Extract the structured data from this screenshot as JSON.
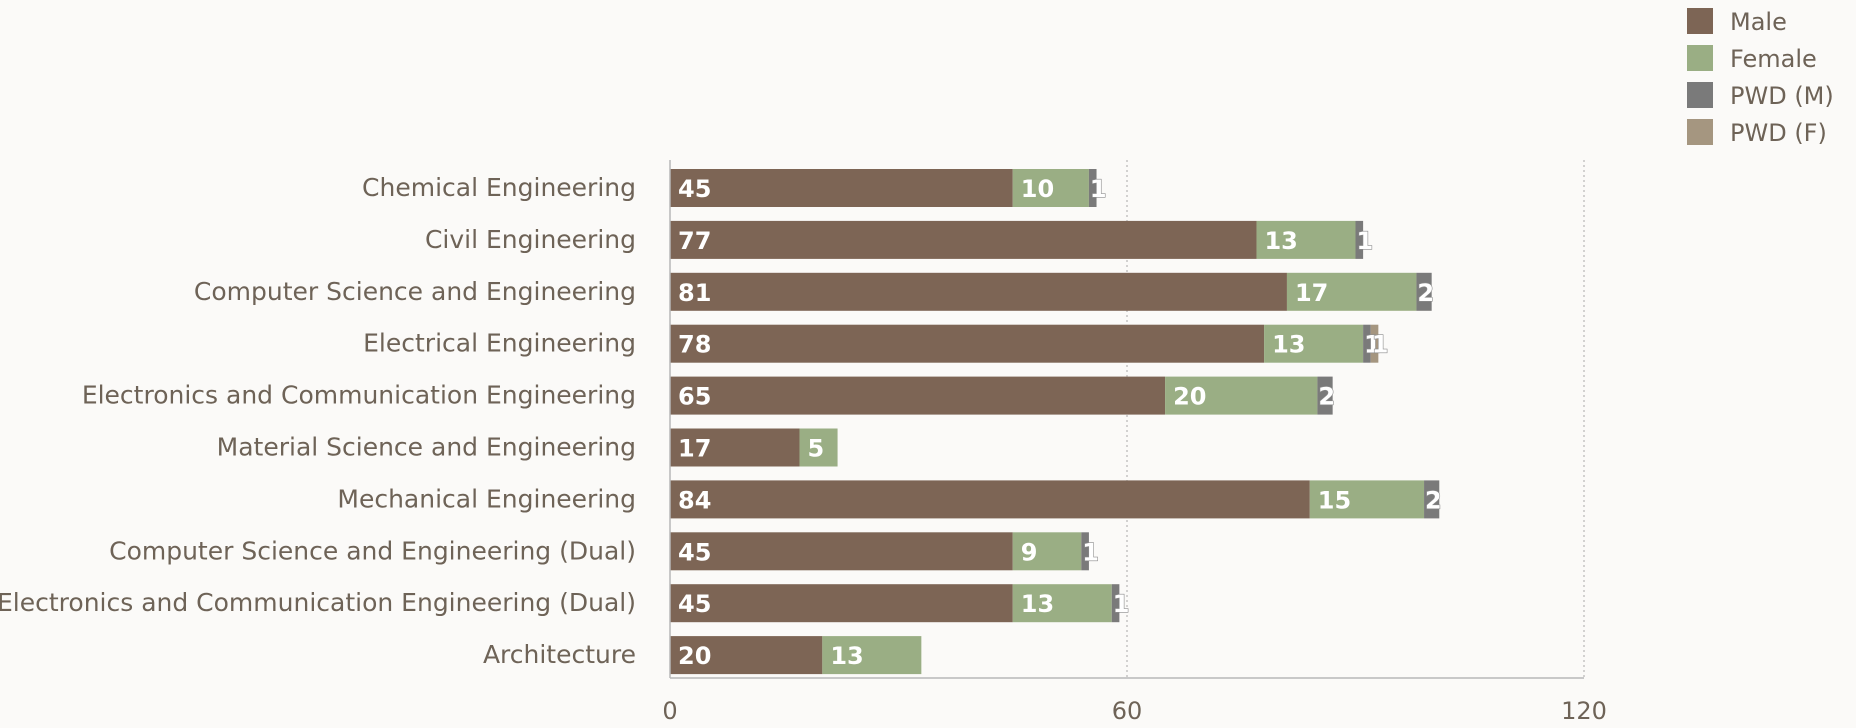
{
  "chart_data": {
    "type": "bar",
    "orientation": "horizontal",
    "stacked": true,
    "categories": [
      "Chemical Engineering",
      "Civil Engineering",
      "Computer Science and Engineering",
      "Electrical Engineering",
      "Electronics and Communication Engineering",
      "Material Science and Engineering",
      "Mechanical Engineering",
      "Computer Science and Engineering (Dual)",
      "Electronics and Communication Engineering (Dual)",
      "Architecture"
    ],
    "series": [
      {
        "name": "Male",
        "color": "#7d6555",
        "values": [
          45,
          77,
          81,
          78,
          65,
          17,
          84,
          45,
          45,
          20
        ]
      },
      {
        "name": "Female",
        "color": "#9aae84",
        "values": [
          10,
          13,
          17,
          13,
          20,
          5,
          15,
          9,
          13,
          13
        ]
      },
      {
        "name": "PWD (M)",
        "color": "#7a7a7a",
        "values": [
          1,
          1,
          2,
          1,
          2,
          0,
          2,
          1,
          1,
          0
        ]
      },
      {
        "name": "PWD (F)",
        "color": "#a59680",
        "values": [
          0,
          0,
          0,
          1,
          0,
          0,
          0,
          0,
          0,
          0
        ]
      }
    ],
    "xlim": [
      0,
      120
    ],
    "xticks": [
      0,
      60,
      120
    ],
    "grid": "vertical dotted",
    "legend": "top-right",
    "title": "",
    "xlabel": "",
    "ylabel": ""
  }
}
